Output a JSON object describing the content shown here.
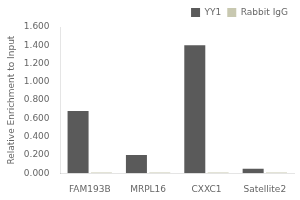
{
  "chart_data": {
    "type": "bar",
    "categories": [
      "FAM193B",
      "MRPL16",
      "CXXC1",
      "Satellite2"
    ],
    "series": [
      {
        "name": "YY1",
        "color": "#5a5a5a",
        "values": [
          0.68,
          0.2,
          1.4,
          0.05
        ]
      },
      {
        "name": "Rabbit IgG",
        "color": "#c8c8b0",
        "values": [
          0.008,
          0.008,
          0.008,
          0.008
        ]
      }
    ],
    "ylabel": "Relative Enrichment to Input",
    "ylim": [
      0,
      1.6
    ],
    "yticks": [
      {
        "value": 0.0,
        "label": "0.000"
      },
      {
        "value": 0.2,
        "label": "0.200"
      },
      {
        "value": 0.4,
        "label": "0.400"
      },
      {
        "value": 0.6,
        "label": "0.600"
      },
      {
        "value": 0.8,
        "label": "0.800"
      },
      {
        "value": 1.0,
        "label": "1.000"
      },
      {
        "value": 1.2,
        "label": "1.200"
      },
      {
        "value": 1.4,
        "label": "1.400"
      },
      {
        "value": 1.6,
        "label": "1.600"
      }
    ],
    "grid": false,
    "legend": "upper right"
  }
}
